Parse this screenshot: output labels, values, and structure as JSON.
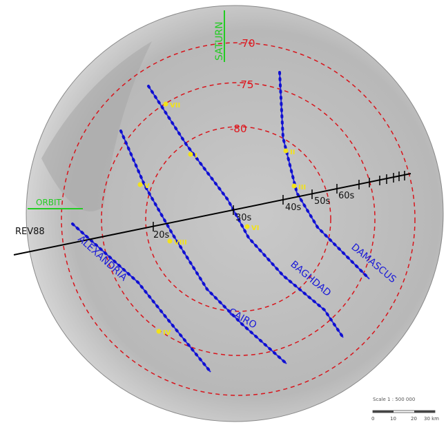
{
  "labels": {
    "saturn": "SATURN",
    "orbit": "ORBIT",
    "rev": "REV88"
  },
  "latitudes": [
    "-70",
    "-75",
    "-80"
  ],
  "times": [
    "20s",
    "30s",
    "40s",
    "50s",
    "60s"
  ],
  "stripes": [
    "ALEXANDRIA",
    "CAIRO",
    "BAGHDAD",
    "DAMASCUS"
  ],
  "sites": [
    "VII",
    "I",
    "II",
    "V",
    "III",
    "VI",
    "VIII",
    "IV"
  ],
  "scale": {
    "title": "Scale 1 : 500 000",
    "ticks": [
      "0",
      "10",
      "20",
      "30 km"
    ]
  }
}
